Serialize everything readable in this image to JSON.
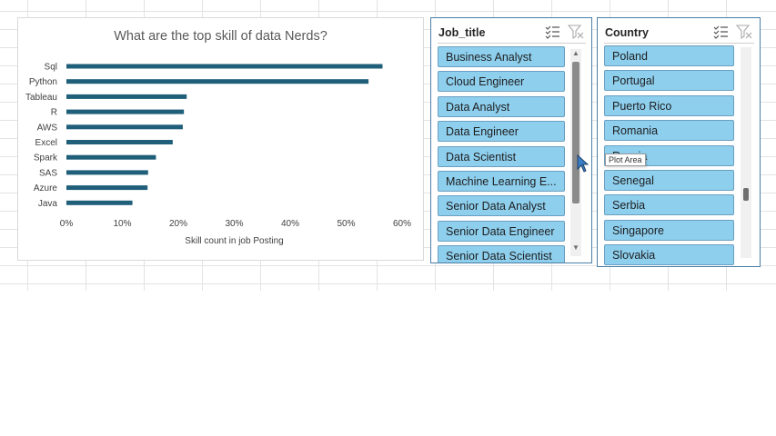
{
  "chart_data": {
    "type": "bar",
    "orientation": "horizontal",
    "title": "What are the top skill of data Nerds?",
    "xlabel": "Skill count in job Posting",
    "ylabel": "",
    "categories": [
      "Sql",
      "Python",
      "Tableau",
      "R",
      "AWS",
      "Excel",
      "Spark",
      "SAS",
      "Azure",
      "Java"
    ],
    "values": [
      56.5,
      54,
      21.5,
      21,
      20.8,
      19,
      16,
      14.6,
      14.5,
      11.8
    ],
    "xlim": [
      0,
      60
    ],
    "xticks": [
      "0%",
      "10%",
      "20%",
      "30%",
      "40%",
      "50%",
      "60%"
    ],
    "bar_color": "#1f5f7a",
    "grid": false,
    "legend": "none"
  },
  "job_slicer": {
    "title": "Job_title",
    "items": [
      "Business Analyst",
      "Cloud Engineer",
      "Data Analyst",
      "Data Engineer",
      "Data Scientist",
      "Machine Learning E...",
      "Senior Data Analyst",
      "Senior Data Engineer",
      "Senior Data Scientist"
    ]
  },
  "country_slicer": {
    "title": "Country",
    "items": [
      "Poland",
      "Portugal",
      "Puerto Rico",
      "Romania",
      "Russia",
      "Senegal",
      "Serbia",
      "Singapore",
      "Slovakia"
    ]
  },
  "tooltip": {
    "text": "Plot Area"
  },
  "colors": {
    "slicer_item": "#8ecfee",
    "slicer_border": "#4a7fa7"
  }
}
